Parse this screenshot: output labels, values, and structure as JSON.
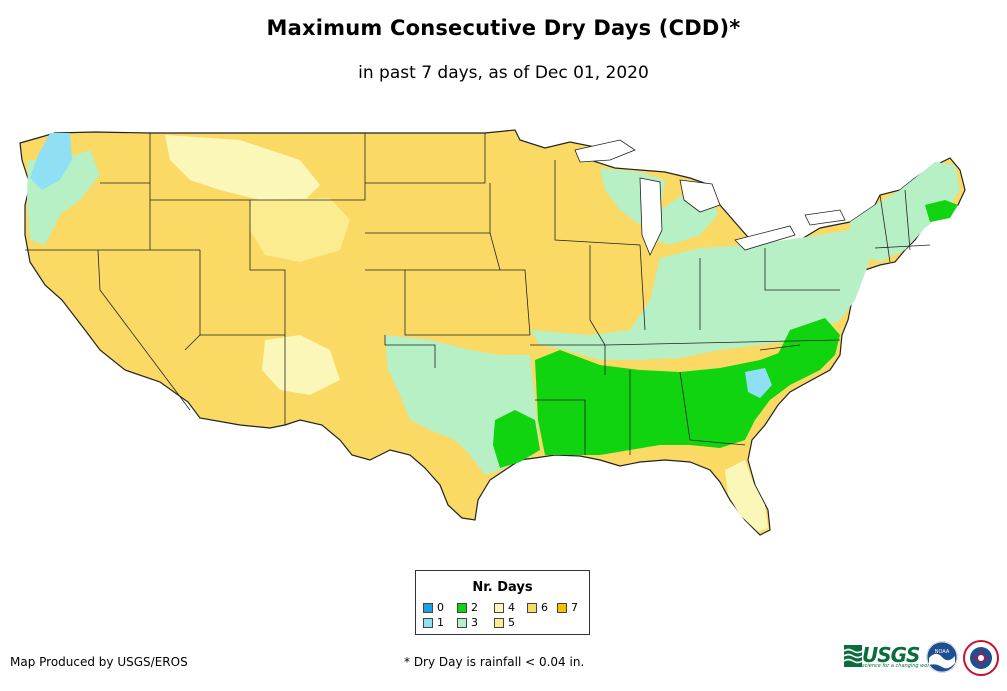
{
  "title": "Maximum Consecutive Dry Days (CDD)*",
  "subtitle": "in past 7 days, as of Dec 01, 2020",
  "legend": {
    "title": "Nr. Days",
    "items": [
      {
        "label": "0",
        "color": "#1fa0e6"
      },
      {
        "label": "1",
        "color": "#8fe0f5"
      },
      {
        "label": "2",
        "color": "#10d410"
      },
      {
        "label": "3",
        "color": "#b6f0c4"
      },
      {
        "label": "4",
        "color": "#fbf7b8"
      },
      {
        "label": "5",
        "color": "#fcec90"
      },
      {
        "label": "6",
        "color": "#fad965"
      },
      {
        "label": "7",
        "color": "#f6c000"
      }
    ]
  },
  "credits": {
    "producer": "Map Produced by USGS/EROS",
    "footnote": "* Dry Day is rainfall < 0.04 in."
  },
  "logos": {
    "usgs": "USGS",
    "usgs_tagline": "science for a changing world",
    "noaa": "NOAA"
  },
  "colors": {
    "cdd0": "#1fa0e6",
    "cdd1": "#8fe0f5",
    "cdd2": "#10d410",
    "cdd3": "#b6f0c4",
    "cdd4": "#fbf7b8",
    "cdd5": "#fcec90",
    "cdd6": "#fad965",
    "cdd7": "#f6c000"
  }
}
